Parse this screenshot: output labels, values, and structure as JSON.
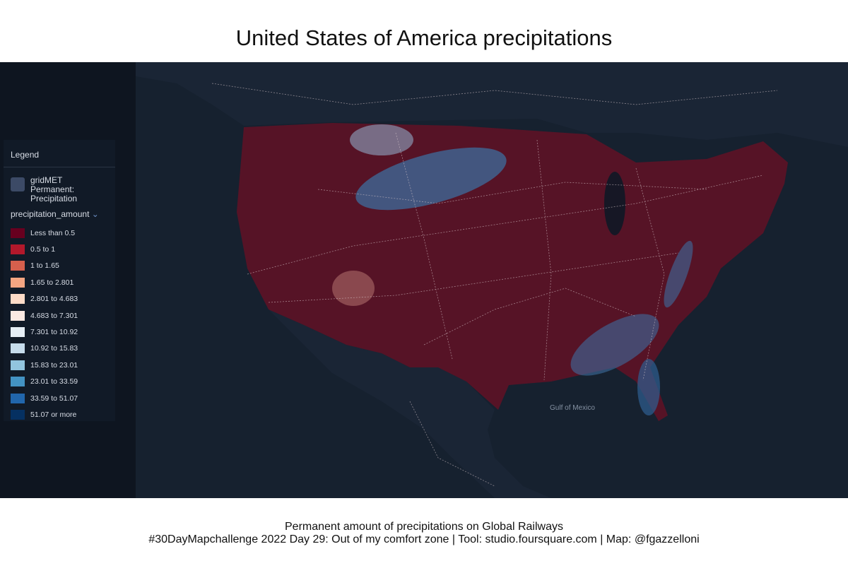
{
  "header": {
    "title": "United States of America precipitations"
  },
  "legend": {
    "title": "Legend",
    "layer": "gridMET Permanent: Precipitation",
    "field": "precipitation_amount",
    "items": [
      {
        "label": "Less than 0.5",
        "color": "#67001f"
      },
      {
        "label": "0.5 to 1",
        "color": "#b2182b"
      },
      {
        "label": "1 to 1.65",
        "color": "#d6604d"
      },
      {
        "label": "1.65 to 2.801",
        "color": "#f4a582"
      },
      {
        "label": "2.801 to 4.683",
        "color": "#fddbc7"
      },
      {
        "label": "4.683 to 7.301",
        "color": "#fbe9e2"
      },
      {
        "label": "7.301 to 10.92",
        "color": "#e6eef5"
      },
      {
        "label": "10.92 to 15.83",
        "color": "#c6dcec"
      },
      {
        "label": "15.83 to 23.01",
        "color": "#92c5de"
      },
      {
        "label": "23.01 to 33.59",
        "color": "#4393c3"
      },
      {
        "label": "33.59 to 51.07",
        "color": "#2166ac"
      },
      {
        "label": "51.07 or more",
        "color": "#053061"
      }
    ]
  },
  "map": {
    "labels": [
      "Gulf of Mexico"
    ]
  },
  "footer": {
    "line1": "Permanent amount of precipitations on Global Railways",
    "line2": "#30DayMapchallenge 2022 Day 29: Out of my comfort zone | Tool: studio.foursquare.com | Map: @fgazzelloni"
  }
}
